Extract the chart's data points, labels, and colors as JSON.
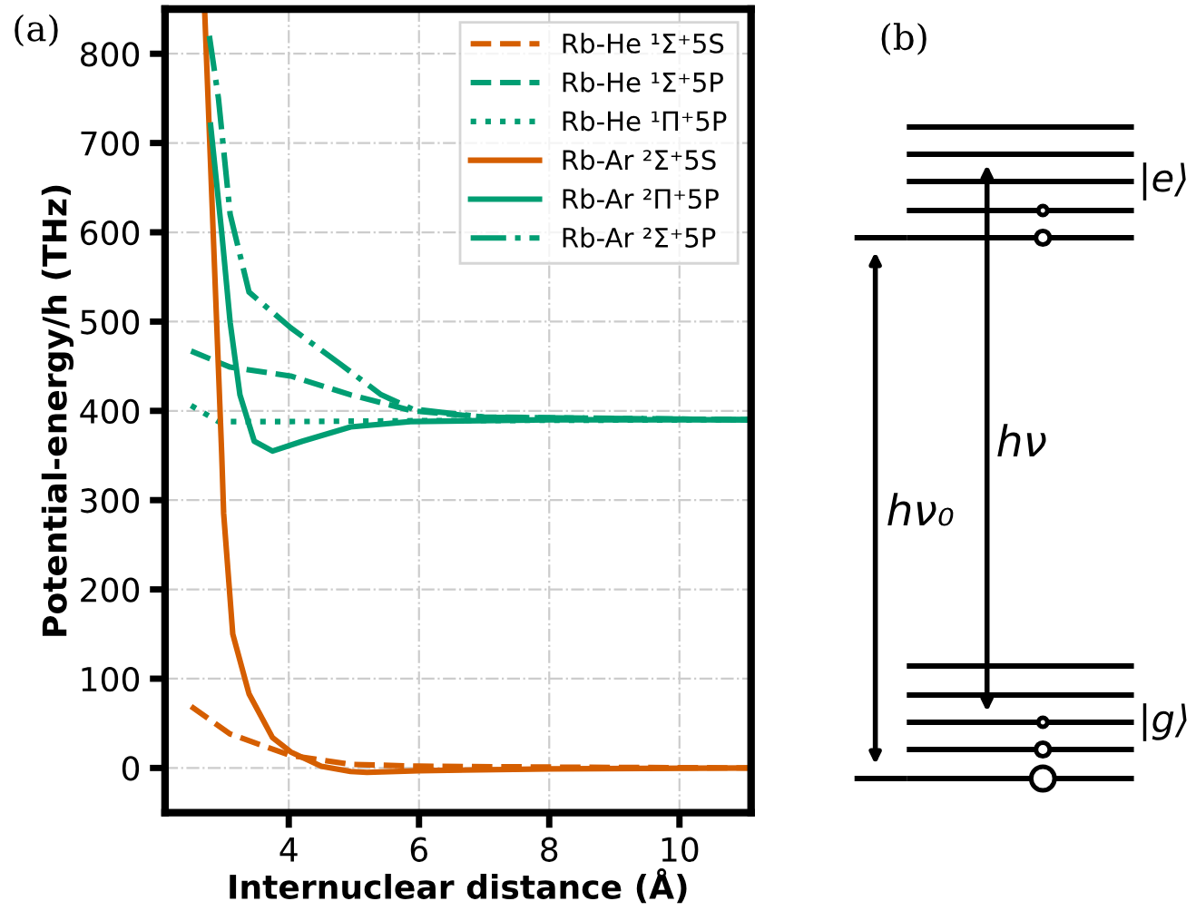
{
  "chart_data": [
    {
      "type": "line",
      "xlabel": "Internuclear distance (Å)",
      "ylabel": "Potential-energy/h (THz)",
      "annotations": [
        "(a)"
      ],
      "xlim": [
        2.1,
        11.1
      ],
      "ylim": [
        -50,
        850
      ],
      "xticks": [
        4,
        6,
        8,
        10
      ],
      "yticks": [
        0,
        100,
        200,
        300,
        400,
        500,
        600,
        700,
        800
      ],
      "grid": true,
      "legend": "top right",
      "series": [
        {
          "name": "Rb-He ¹Σ⁺5S",
          "color": "#d55e00",
          "line_style": "dashed",
          "x": [
            2.5,
            3.1,
            4.03,
            4.95,
            6,
            8,
            11.1
          ],
          "values": [
            69,
            38,
            14,
            4,
            2,
            1,
            0
          ]
        },
        {
          "name": "Rb-He ¹Σ⁺5P",
          "color": "#009e73",
          "line_style": "dashed",
          "x": [
            2.5,
            3.1,
            4.03,
            4.95,
            5.9,
            7,
            11.1
          ],
          "values": [
            467,
            449,
            439,
            418,
            400,
            393,
            390
          ]
        },
        {
          "name": "Rb-He ¹Π⁺5P",
          "color": "#009e73",
          "line_style": "dotted",
          "x": [
            2.5,
            2.92,
            4,
            6,
            11.1
          ],
          "values": [
            406,
            388,
            388,
            389,
            390
          ]
        },
        {
          "name": "Rb-Ar ²Σ⁺5S",
          "color": "#d55e00",
          "line_style": "solid",
          "x": [
            2.71,
            2.97,
            3.0,
            3.14,
            3.39,
            3.75,
            4.03,
            4.5,
            4.95,
            5.2,
            6.0,
            8,
            11.1
          ],
          "values": [
            845,
            352,
            285,
            150,
            83,
            34,
            18,
            2,
            -4,
            -5,
            -3,
            -1,
            0
          ]
        },
        {
          "name": "Rb-Ar ²Π⁺5P",
          "color": "#009e73",
          "line_style": "solid",
          "x": [
            2.8,
            2.97,
            3.1,
            3.25,
            3.47,
            3.75,
            4.21,
            4.95,
            5.87,
            8,
            11.1
          ],
          "values": [
            720,
            600,
            499,
            418,
            366,
            355,
            366,
            382,
            388,
            390,
            390
          ]
        },
        {
          "name": "Rb-Ar ²Σ⁺5P",
          "color": "#009e73",
          "line_style": "dashdot",
          "x": [
            2.78,
            2.92,
            3.1,
            3.39,
            4.03,
            4.78,
            5.42,
            5.9,
            7,
            11.1
          ],
          "values": [
            820,
            750,
            620,
            533,
            493,
            453,
            418,
            402,
            393,
            390
          ]
        }
      ]
    },
    {
      "type": "other",
      "annotations": [
        "(b)",
        "|e⟩",
        "hν",
        "hν₀",
        "|g⟩"
      ]
    }
  ]
}
